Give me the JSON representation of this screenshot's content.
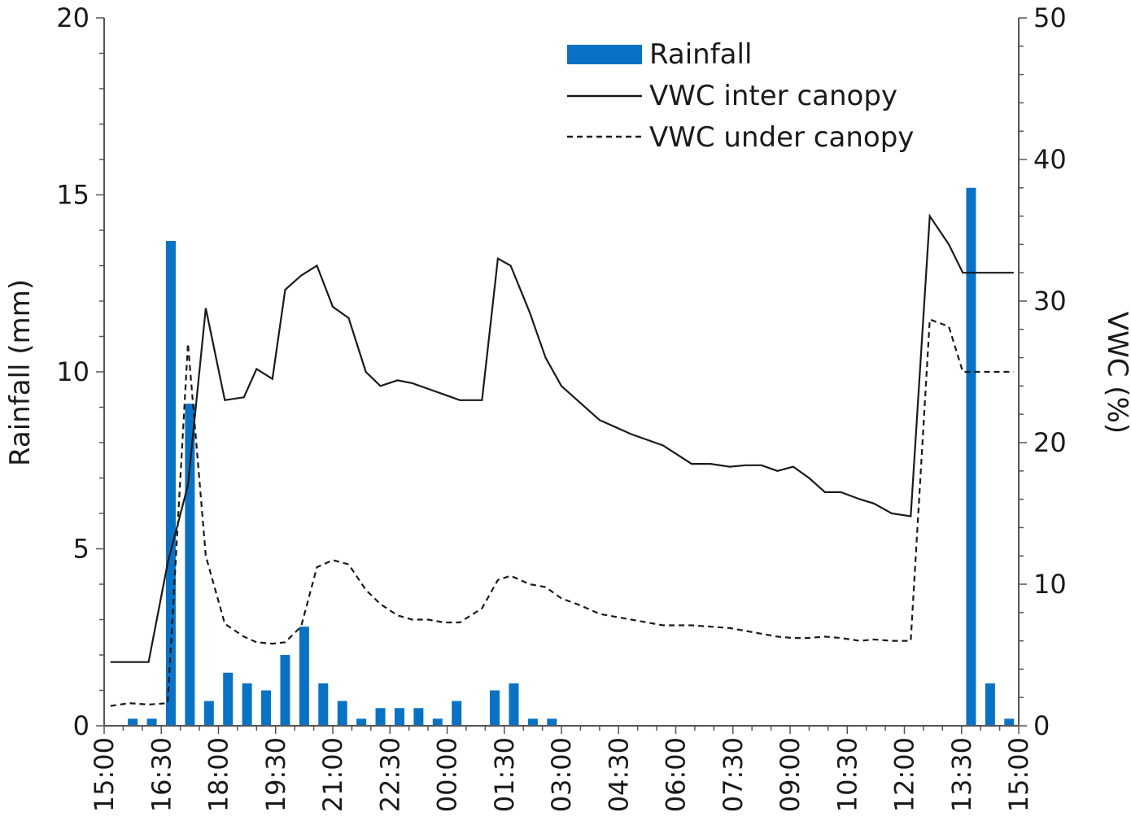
{
  "chart_data": {
    "type": "bar",
    "title": "",
    "xlabel": "",
    "ylabel": "Rainfall (mm)",
    "y2label": "VWC (%)",
    "ylim": [
      0,
      20
    ],
    "y2lim": [
      0,
      50
    ],
    "yticks": [
      "0",
      "5",
      "10",
      "15",
      "20"
    ],
    "y2ticks": [
      "0",
      "10",
      "20",
      "30",
      "40",
      "50"
    ],
    "x_range_minutes": [
      0,
      1440
    ],
    "xticks": [
      {
        "label": "15:00",
        "t": 0
      },
      {
        "label": "16:30",
        "t": 90
      },
      {
        "label": "18:00",
        "t": 180
      },
      {
        "label": "19:30",
        "t": 270
      },
      {
        "label": "21:00",
        "t": 360
      },
      {
        "label": "22:30",
        "t": 450
      },
      {
        "label": "00:00",
        "t": 540
      },
      {
        "label": "01:30",
        "t": 630
      },
      {
        "label": "03:00",
        "t": 720
      },
      {
        "label": "04:30",
        "t": 810
      },
      {
        "label": "06:00",
        "t": 900
      },
      {
        "label": "07:30",
        "t": 990
      },
      {
        "label": "09:00",
        "t": 1080
      },
      {
        "label": "10:30",
        "t": 1170
      },
      {
        "label": "12:00",
        "t": 1260
      },
      {
        "label": "13:30",
        "t": 1350
      },
      {
        "label": "15:00",
        "t": 1440
      }
    ],
    "legend": {
      "position": "top-right",
      "rainfall": "Rainfall",
      "inter": "VWC inter canopy",
      "under": "VWC under canopy"
    },
    "colors": {
      "bar": "#0a72c4",
      "line": "#1a1a1a",
      "axis": "#555555"
    },
    "series": [
      {
        "name": "Rainfall",
        "type": "bar",
        "axis": "left",
        "t": [
          45,
          75,
          105,
          135,
          165,
          195,
          225,
          255,
          285,
          315,
          345,
          375,
          405,
          435,
          465,
          495,
          525,
          555,
          615,
          645,
          675,
          705,
          1365,
          1395,
          1425
        ],
        "values": [
          0.2,
          0.2,
          13.7,
          9.1,
          0.7,
          1.5,
          1.2,
          1.0,
          2.0,
          2.8,
          1.2,
          0.7,
          0.2,
          0.5,
          0.5,
          0.5,
          0.2,
          0.7,
          1.0,
          1.2,
          0.2,
          0.2,
          15.2,
          1.2,
          0.2
        ]
      },
      {
        "name": "VWC inter canopy",
        "type": "line",
        "axis": "right",
        "style": "solid",
        "t": [
          10,
          40,
          70,
          100,
          132,
          160,
          190,
          220,
          240,
          265,
          285,
          310,
          335,
          360,
          385,
          412,
          435,
          462,
          485,
          510,
          535,
          560,
          595,
          620,
          640,
          670,
          695,
          720,
          750,
          780,
          830,
          880,
          925,
          955,
          985,
          1010,
          1035,
          1060,
          1085,
          1110,
          1135,
          1160,
          1190,
          1212,
          1240,
          1270,
          1300,
          1330,
          1352,
          1366,
          1388,
          1410,
          1432
        ],
        "values": [
          4.5,
          4.5,
          4.5,
          11.5,
          17.0,
          29.5,
          23.0,
          23.2,
          25.2,
          24.5,
          30.8,
          31.8,
          32.5,
          29.6,
          28.8,
          25.0,
          24.0,
          24.4,
          24.2,
          23.8,
          23.4,
          23.0,
          23.0,
          33.0,
          32.5,
          29.2,
          26.0,
          24.0,
          22.8,
          21.6,
          20.6,
          19.8,
          18.5,
          18.5,
          18.3,
          18.4,
          18.4,
          18.0,
          18.3,
          17.5,
          16.5,
          16.5,
          16.0,
          15.7,
          15.0,
          14.8,
          36.0,
          34.0,
          32.0,
          32.0,
          32.0,
          32.0,
          32.0
        ]
      },
      {
        "name": "VWC under canopy",
        "type": "line",
        "axis": "right",
        "style": "dashed",
        "t": [
          10,
          40,
          70,
          100,
          132,
          160,
          190,
          220,
          240,
          265,
          285,
          310,
          335,
          360,
          385,
          412,
          435,
          462,
          485,
          510,
          535,
          560,
          595,
          620,
          640,
          670,
          695,
          720,
          750,
          780,
          830,
          880,
          925,
          955,
          985,
          1010,
          1035,
          1060,
          1085,
          1110,
          1135,
          1160,
          1190,
          1212,
          1240,
          1270,
          1300,
          1330,
          1352,
          1366,
          1388,
          1410,
          1432
        ],
        "values": [
          1.4,
          1.6,
          1.5,
          1.6,
          27.0,
          12.0,
          7.2,
          6.3,
          5.9,
          5.8,
          5.9,
          7.0,
          11.2,
          11.7,
          11.4,
          9.6,
          8.6,
          7.8,
          7.5,
          7.5,
          7.3,
          7.3,
          8.3,
          10.3,
          10.6,
          10.0,
          9.8,
          9.0,
          8.5,
          7.9,
          7.5,
          7.1,
          7.1,
          7.0,
          6.9,
          6.7,
          6.5,
          6.3,
          6.2,
          6.2,
          6.3,
          6.2,
          6.0,
          6.1,
          6.0,
          6.0,
          28.7,
          28.2,
          25.0,
          25.0,
          25.0,
          25.0,
          25.0
        ]
      }
    ]
  }
}
